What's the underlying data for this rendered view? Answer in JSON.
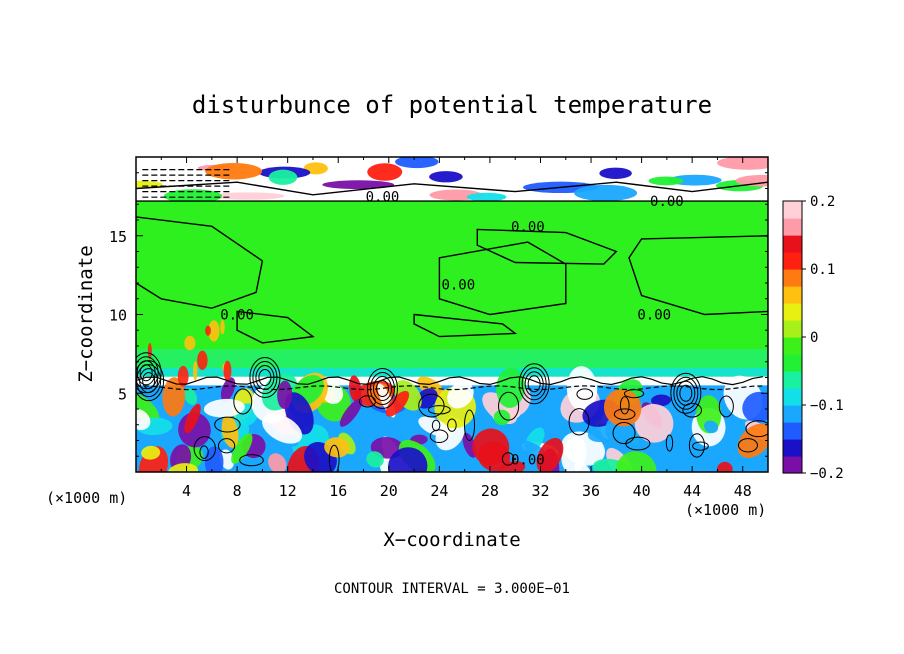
{
  "chart_data": {
    "type": "heatmap",
    "title": "disturbunce of potential temperature",
    "xlabel": "X−coordinate",
    "ylabel": "Z−coordinate",
    "x_unit": "(×1000 m)",
    "y_unit": "(×1000 m)",
    "xlim": [
      0,
      50
    ],
    "ylim": [
      0,
      20
    ],
    "x_ticks": [
      4,
      8,
      12,
      16,
      20,
      24,
      28,
      32,
      36,
      40,
      44,
      48
    ],
    "y_ticks": [
      5,
      10,
      15
    ],
    "footer": "CONTOUR INTERVAL = 3.000E−01",
    "contour_labels": [
      {
        "text": "0.00",
        "x": 19.5,
        "z": 17.5
      },
      {
        "text": "0.00",
        "x": 31.0,
        "z": 15.6
      },
      {
        "text": "0.00",
        "x": 25.5,
        "z": 11.9
      },
      {
        "text": "0.00",
        "x": 8.0,
        "z": 10.0
      },
      {
        "text": "0.00",
        "x": 41.0,
        "z": 10.0
      },
      {
        "text": "0.00",
        "x": 42.0,
        "z": 17.2
      },
      {
        "text": "0.00",
        "x": 31.0,
        "z": 0.8
      }
    ],
    "colorbar": {
      "ticks": [
        "0.2",
        "0.1",
        "0",
        "−0.1",
        "−0.2"
      ],
      "tick_values": [
        0.2,
        0.1,
        0,
        -0.1,
        -0.2
      ],
      "min": -0.2,
      "max": 0.2,
      "colors": [
        "#7a0fa8",
        "#1a10c8",
        "#1f5cff",
        "#1aa8ff",
        "#12e0e8",
        "#19f0a0",
        "#22f035",
        "#3df01a",
        "#a8f01a",
        "#e8f012",
        "#ffc010",
        "#ff7a10",
        "#ff2010",
        "#e8101a",
        "#ff9aa8",
        "#ffd0d8"
      ]
    }
  }
}
